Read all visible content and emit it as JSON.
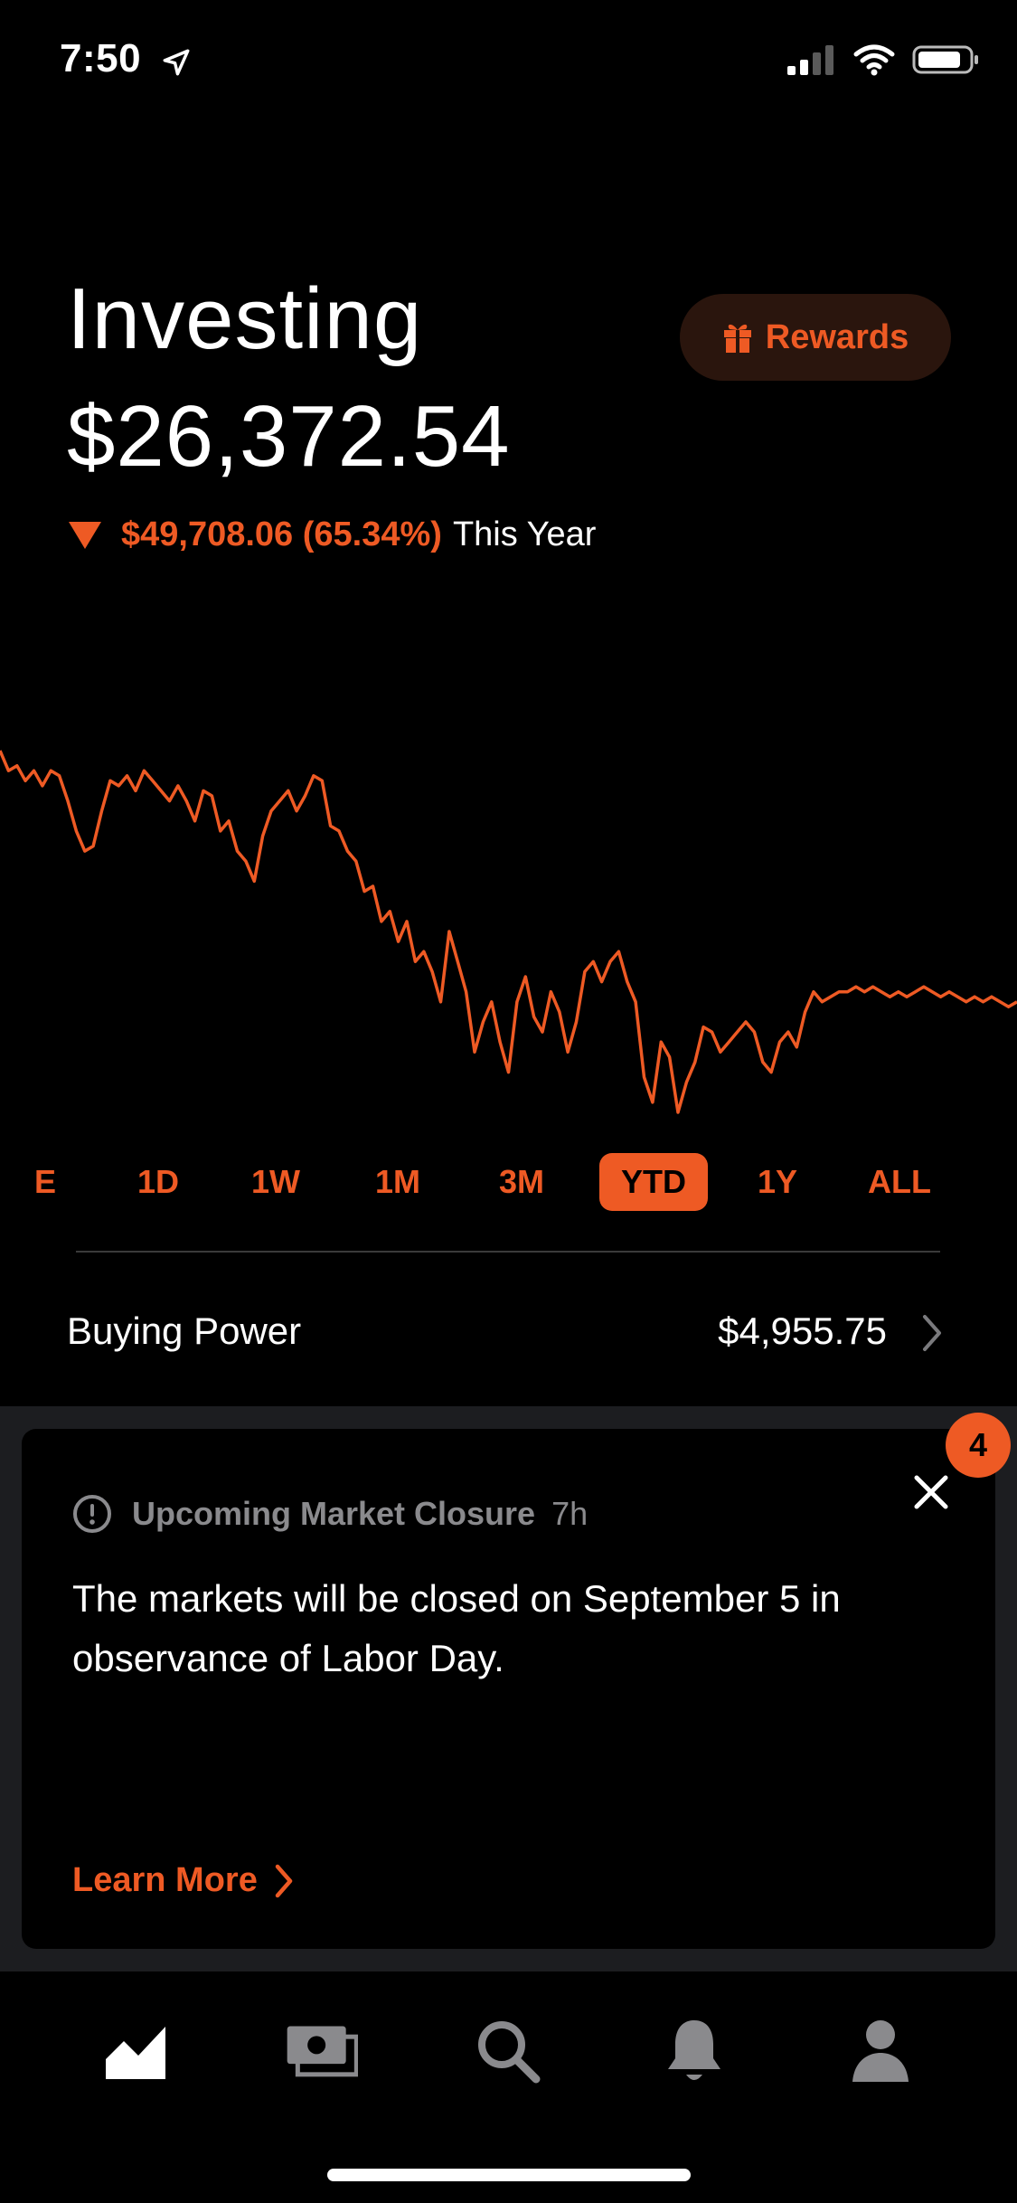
{
  "status_bar": {
    "time": "7:50"
  },
  "header": {
    "title": "Investing",
    "portfolio_value": "$26,372.54",
    "change_value": "$49,708.06 (65.34%)",
    "change_period": "This Year",
    "rewards_label": "Rewards"
  },
  "chart_data": {
    "type": "line",
    "series": [
      {
        "values": [
          100,
          96,
          97,
          94,
          96,
          93,
          96,
          95,
          90,
          84,
          80,
          81,
          88,
          94,
          93,
          95,
          92,
          96,
          94,
          92,
          90,
          93,
          90,
          86,
          92,
          91,
          84,
          86,
          80,
          78,
          74,
          83,
          88,
          90,
          92,
          88,
          91,
          95,
          94,
          85,
          84,
          80,
          78,
          72,
          73,
          66,
          68,
          62,
          66,
          58,
          60,
          56,
          50,
          64,
          58,
          52,
          40,
          46,
          50,
          42,
          36,
          50,
          55,
          47,
          44,
          52,
          48,
          40,
          46,
          56,
          58,
          54,
          58,
          60,
          54,
          50,
          35,
          30,
          42,
          39,
          28,
          34,
          38,
          45,
          44,
          40,
          42,
          44,
          46,
          44,
          38,
          36,
          42,
          44,
          41,
          48,
          52,
          50,
          51,
          52,
          52,
          53,
          52,
          53,
          52,
          51,
          52,
          51,
          52,
          53,
          52,
          51,
          52,
          51,
          50,
          51,
          50,
          51,
          50,
          49,
          50
        ]
      }
    ],
    "colors": {
      "line": "#ee5a24"
    }
  },
  "ranges": {
    "items": [
      "LIVE",
      "1D",
      "1W",
      "1M",
      "3M",
      "YTD",
      "1Y",
      "ALL"
    ],
    "visible_first": "E",
    "selected": "YTD"
  },
  "buying_power": {
    "label": "Buying Power",
    "value": "$4,955.75"
  },
  "notification_card": {
    "badge_count": "4",
    "title": "Upcoming Market Closure",
    "time_ago": "7h",
    "body": "The markets will be closed on September 5 in observance of Labor Day.",
    "cta": "Learn More"
  },
  "tab_bar": {
    "items": [
      "investing-icon",
      "cash-icon",
      "search-icon",
      "bell-icon",
      "account-icon"
    ],
    "active": "investing-icon"
  },
  "colors": {
    "accent": "#ee5a24",
    "background": "#000000",
    "card_area": "#1c1d20",
    "muted": "#8a8a8d"
  }
}
